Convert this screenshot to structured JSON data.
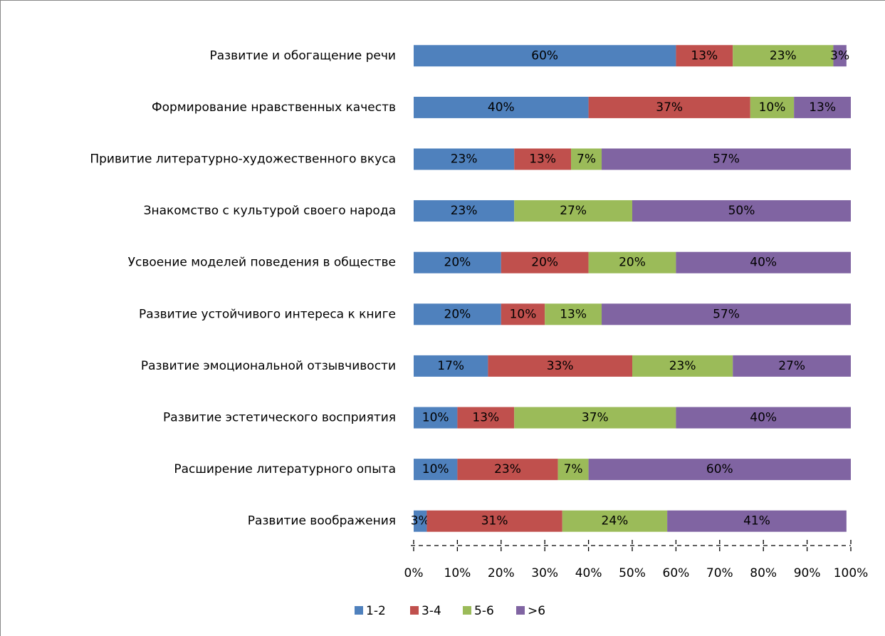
{
  "chart_data": {
    "type": "stacked_bar_horizontal",
    "categories": [
      "Развитие и обогащение речи",
      "Формирование нравственных качеств",
      "Привитие литературно-художественного вкуса",
      "Знакомство с культурой своего народа",
      "Усвоение моделей поведения в обществе",
      "Развитие устойчивого интереса к книге",
      "Развитие эмоциональной отзывчивости",
      "Развитие эстетического восприятия",
      "Расширение литературного опыта",
      "Развитие воображения"
    ],
    "series": [
      {
        "name": "1-2",
        "color": "#4f81bd",
        "values": [
          60,
          40,
          23,
          23,
          20,
          20,
          17,
          10,
          10,
          3
        ],
        "value_labels": [
          "60%",
          "40%",
          "23%",
          "23%",
          "20%",
          "20%",
          "17%",
          "10%",
          "10%",
          "3%"
        ]
      },
      {
        "name": "3-4",
        "color": "#c0504d",
        "values": [
          13,
          37,
          13,
          null,
          20,
          10,
          33,
          13,
          23,
          31
        ],
        "value_labels": [
          "13%",
          "37%",
          "13%",
          null,
          "20%",
          "10%",
          "33%",
          "13%",
          "23%",
          "31%"
        ]
      },
      {
        "name": "5-6",
        "color": "#9bbb59",
        "values": [
          23,
          10,
          7,
          27,
          20,
          13,
          23,
          37,
          7,
          24
        ],
        "value_labels": [
          "23%",
          "10%",
          "7%",
          "27%",
          "20%",
          "13%",
          "23%",
          "37%",
          "7%",
          "24%"
        ]
      },
      {
        "name": ">6",
        "color": "#8064a2",
        "values": [
          3,
          13,
          57,
          50,
          40,
          57,
          27,
          40,
          60,
          41
        ],
        "value_labels": [
          "3%",
          "13%",
          "57%",
          "50%",
          "40%",
          "57%",
          "27%",
          "40%",
          "60%",
          "41%"
        ]
      }
    ],
    "xlim": [
      0,
      100
    ],
    "xticks": [
      {
        "value": 0,
        "label": "0%"
      },
      {
        "value": 10,
        "label": "10%"
      },
      {
        "value": 20,
        "label": "20%"
      },
      {
        "value": 30,
        "label": "30%"
      },
      {
        "value": 40,
        "label": "40%"
      },
      {
        "value": 50,
        "label": "50%"
      },
      {
        "value": 60,
        "label": "60%"
      },
      {
        "value": 70,
        "label": "70%"
      },
      {
        "value": 80,
        "label": "80%"
      },
      {
        "value": 90,
        "label": "90%"
      },
      {
        "value": 100,
        "label": "100%"
      }
    ],
    "legend": "bottom"
  }
}
